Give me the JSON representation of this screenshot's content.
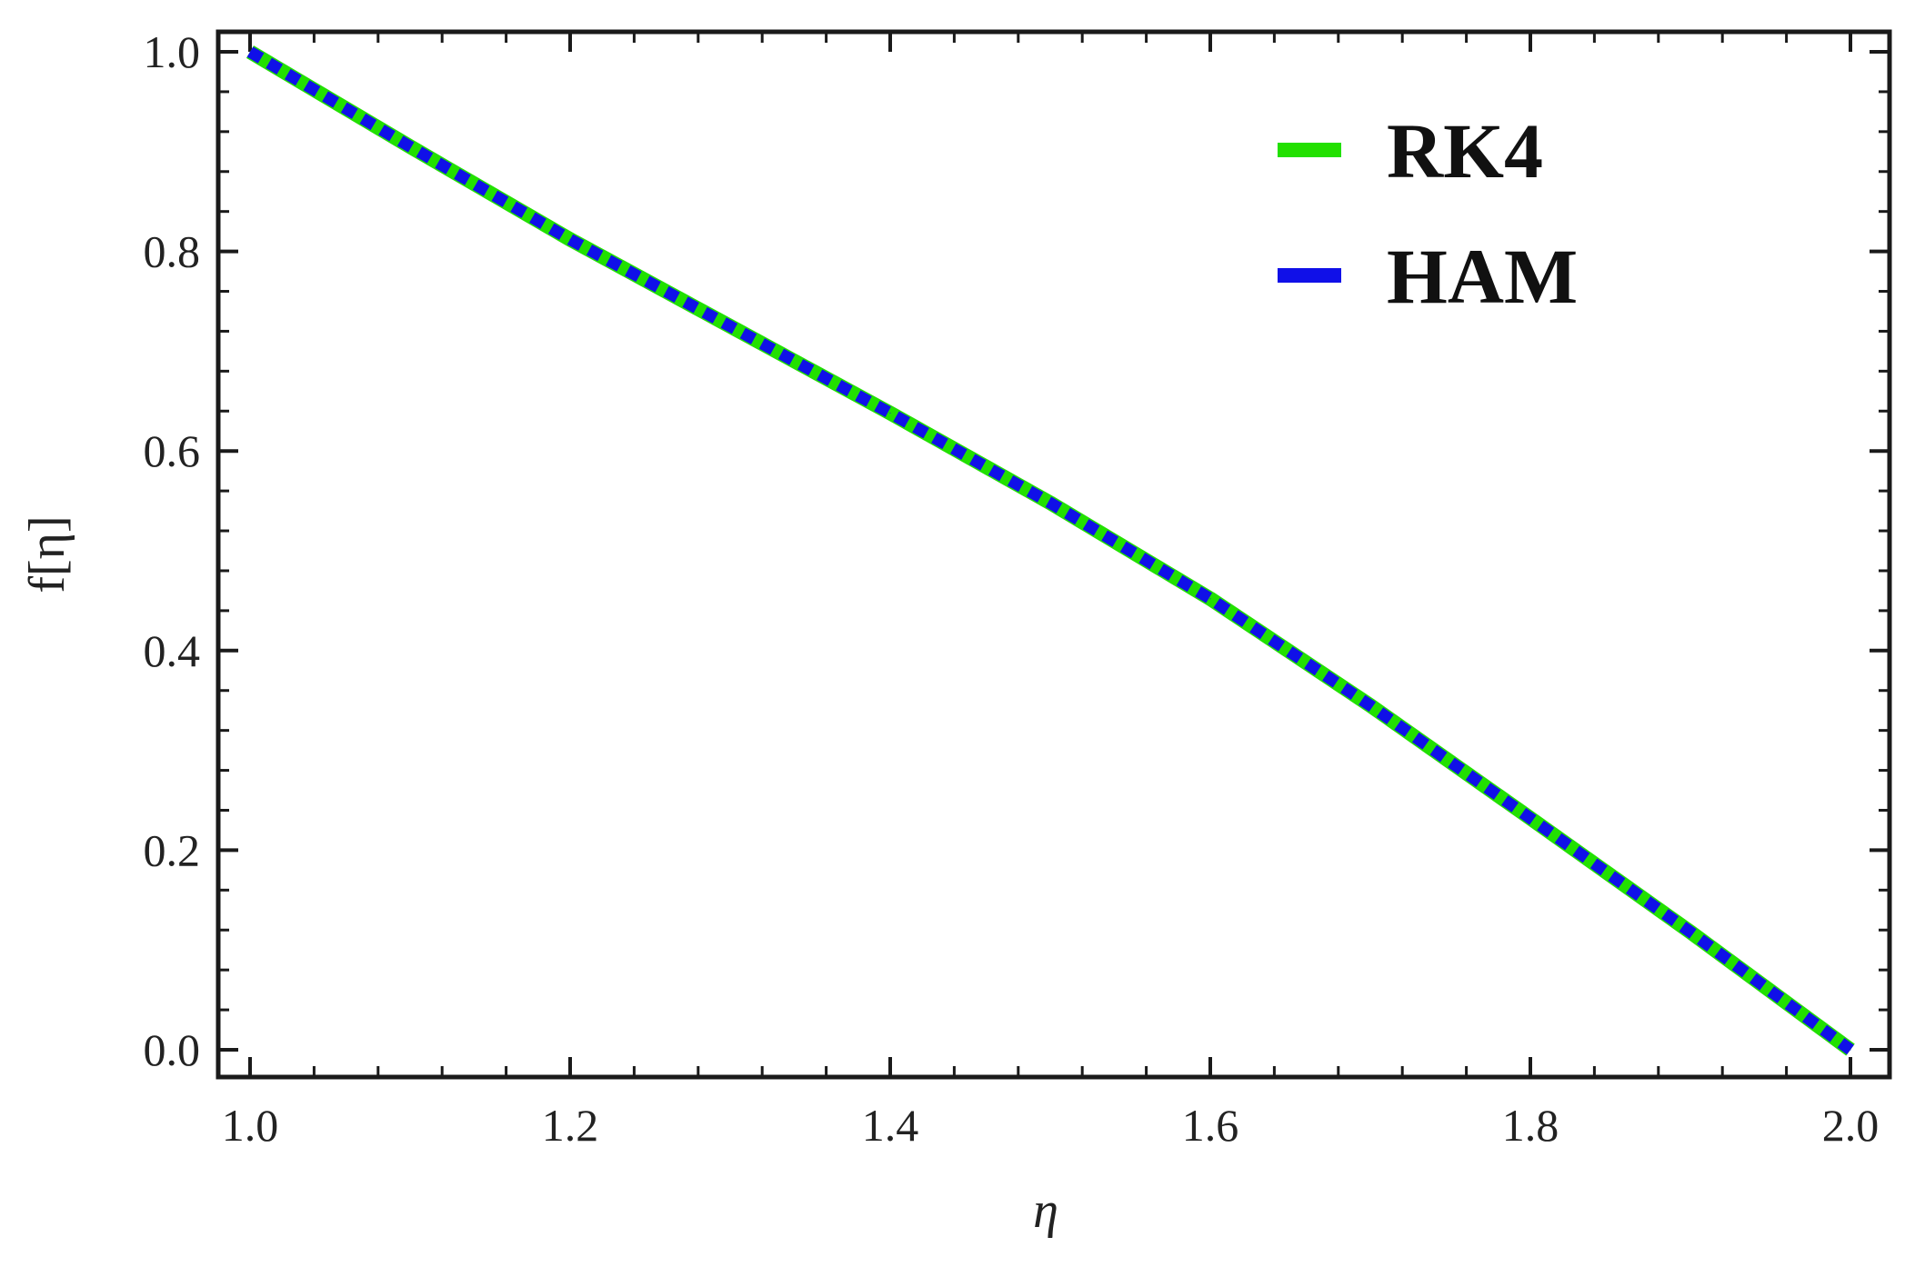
{
  "chart_data": {
    "type": "line",
    "title": "",
    "xlabel": "η",
    "ylabel": "f[η]",
    "xlim": [
      1.0,
      2.0
    ],
    "ylim": [
      0.0,
      1.0
    ],
    "x_ticks": [
      "1.0",
      "1.2",
      "1.4",
      "1.6",
      "1.8",
      "2.0"
    ],
    "y_ticks": [
      "0.0",
      "0.2",
      "0.4",
      "0.6",
      "0.8",
      "1.0"
    ],
    "x_tick_values": [
      1.0,
      1.2,
      1.4,
      1.6,
      1.8,
      2.0
    ],
    "y_tick_values": [
      0.0,
      0.2,
      0.4,
      0.6,
      0.8,
      1.0
    ],
    "grid": false,
    "legend_position": "top-right",
    "x": [
      1.0,
      1.1,
      1.2,
      1.3,
      1.4,
      1.5,
      1.6,
      1.7,
      1.8,
      1.9,
      2.0
    ],
    "series": [
      {
        "name": "RK4",
        "color": "#22e000",
        "style": "solid",
        "values": [
          1.0,
          0.905,
          0.812,
          0.725,
          0.638,
          0.548,
          0.452,
          0.345,
          0.232,
          0.118,
          0.0
        ]
      },
      {
        "name": "HAM",
        "color": "#1010e8",
        "style": "dashed",
        "values": [
          1.0,
          0.905,
          0.812,
          0.725,
          0.638,
          0.548,
          0.452,
          0.345,
          0.232,
          0.118,
          0.0
        ]
      }
    ]
  }
}
